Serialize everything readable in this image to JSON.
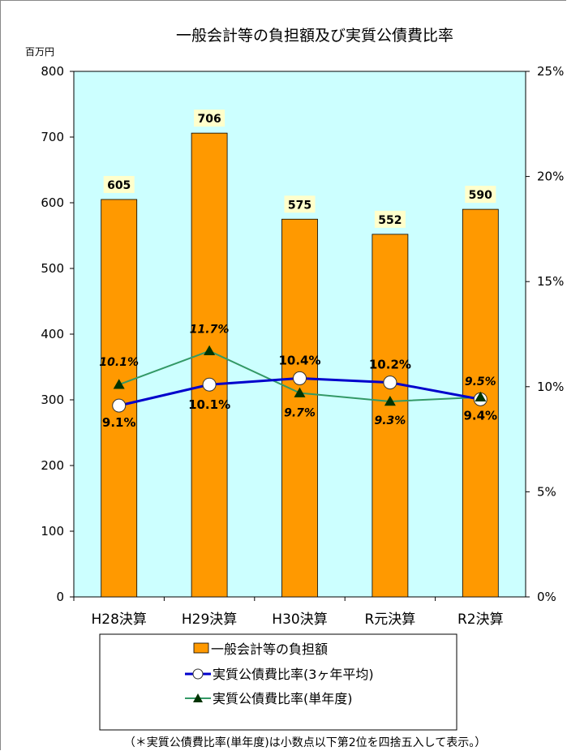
{
  "chart_data": {
    "type": "bar",
    "title": "一般会計等の負担額及び実質公債費比率",
    "y_left_unit": "百万円",
    "y_left_range": [
      0,
      800
    ],
    "y_left_ticks": [
      "0",
      "100",
      "200",
      "300",
      "400",
      "500",
      "600",
      "700",
      "800"
    ],
    "y_right_range": [
      0,
      25
    ],
    "y_right_ticks": [
      "0%",
      "5%",
      "10%",
      "15%",
      "20%",
      "25%"
    ],
    "categories": [
      "H28決算",
      "H29決算",
      "H30決算",
      "R元決算",
      "R2決算"
    ],
    "series": [
      {
        "name": "一般会計等の負担額",
        "type": "bar",
        "axis": "left",
        "values": [
          605,
          706,
          575,
          552,
          590
        ],
        "labels": [
          "605",
          "706",
          "575",
          "552",
          "590"
        ],
        "color": "#FF9900"
      },
      {
        "name": "実質公債費比率(3ヶ年平均)",
        "type": "line",
        "axis": "right",
        "values": [
          9.1,
          10.1,
          10.4,
          10.2,
          9.4
        ],
        "labels": [
          "9.1%",
          "10.1%",
          "10.4%",
          "10.2%",
          "9.4%"
        ],
        "color": "#0000CC"
      },
      {
        "name": "実質公債費比率(単年度)",
        "type": "line",
        "axis": "right",
        "values": [
          10.1,
          11.7,
          9.7,
          9.3,
          9.5
        ],
        "labels": [
          "10.1%",
          "11.7%",
          "9.7%",
          "9.3%",
          "9.5%"
        ],
        "color": "#339966"
      }
    ],
    "plot_background": "#CCFFFF",
    "grid": false,
    "legend_position": "bottom",
    "note": "（＊実質公債費比率(単年度)は小数点以下第2位を四捨五入して表示。）"
  }
}
